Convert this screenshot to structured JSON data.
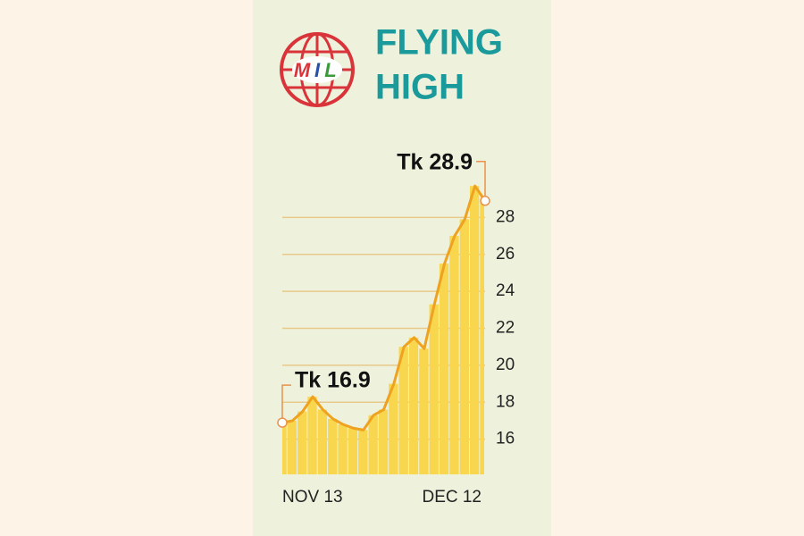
{
  "logo": {
    "letters": [
      "M",
      "I",
      "L"
    ]
  },
  "chart_data": {
    "type": "area",
    "title": [
      "FLYING",
      "HIGH"
    ],
    "categories": [
      "NOV 13",
      null,
      null,
      null,
      null,
      null,
      null,
      null,
      null,
      null,
      null,
      null,
      null,
      null,
      null,
      null,
      null,
      null,
      null,
      null,
      "DEC 12"
    ],
    "values": [
      16.9,
      17.0,
      17.5,
      18.3,
      17.6,
      17.1,
      16.8,
      16.6,
      16.5,
      17.3,
      17.6,
      19.0,
      21.0,
      21.5,
      20.9,
      23.3,
      25.5,
      27.0,
      27.9,
      29.7,
      28.9
    ],
    "annotations": [
      "Tk 16.9",
      "Tk 28.9"
    ],
    "line_color": "#eea21f",
    "fill_color": "#f8d64e",
    "ylim": [
      14.1,
      30
    ],
    "yticks": [
      16,
      18,
      20,
      22,
      24,
      26,
      28
    ],
    "grid": true
  }
}
